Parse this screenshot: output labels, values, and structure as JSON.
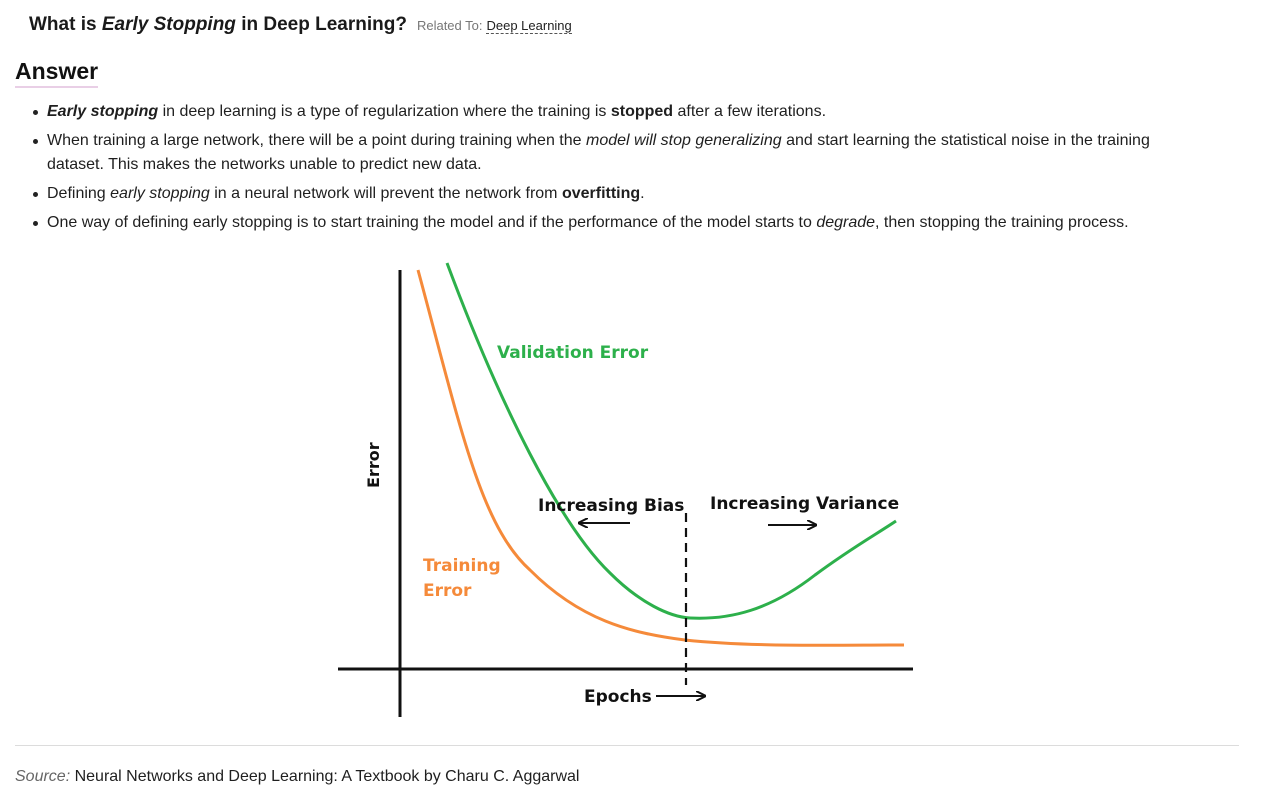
{
  "header": {
    "title_pre": "What is ",
    "title_em": "Early Stopping",
    "title_post": " in Deep Learning?",
    "related_label": "Related To:",
    "related_link": "Deep Learning"
  },
  "answer": {
    "heading": "Answer",
    "bullets": [
      {
        "b_em": "Early stopping",
        "t1": " in deep learning is a type of regularization where the training is ",
        "b": "stopped",
        "t2": " after a few iterations."
      },
      {
        "t1": "When training a large network, there will be a point during training when the ",
        "em": "model will stop generalizing",
        "t2": " and start learning the statistical noise in the training dataset. This makes the networks unable to predict new data."
      },
      {
        "t1": "Defining ",
        "em": "early stopping",
        "t2": " in a neural network will prevent the network from ",
        "b": "overfitting",
        "t3": "."
      },
      {
        "t1": "One way of defining early stopping is to start training the model and if the performance of the model starts to ",
        "em": "degrade",
        "t2": ", then stopping the training process."
      }
    ]
  },
  "figure": {
    "labels": {
      "validation": "Validation Error",
      "training_line1": "Training",
      "training_line2": "Error",
      "y_axis": "Error",
      "x_axis": "Epochs",
      "bias": "Increasing Bias",
      "variance": "Increasing Variance"
    },
    "colors": {
      "validation": "#2db04b",
      "training": "#f58a3a",
      "axis": "#111111"
    }
  },
  "source": {
    "label": "Source:",
    "text": " Neural Networks and Deep Learning: A Textbook by Charu C. Aggarwal"
  }
}
